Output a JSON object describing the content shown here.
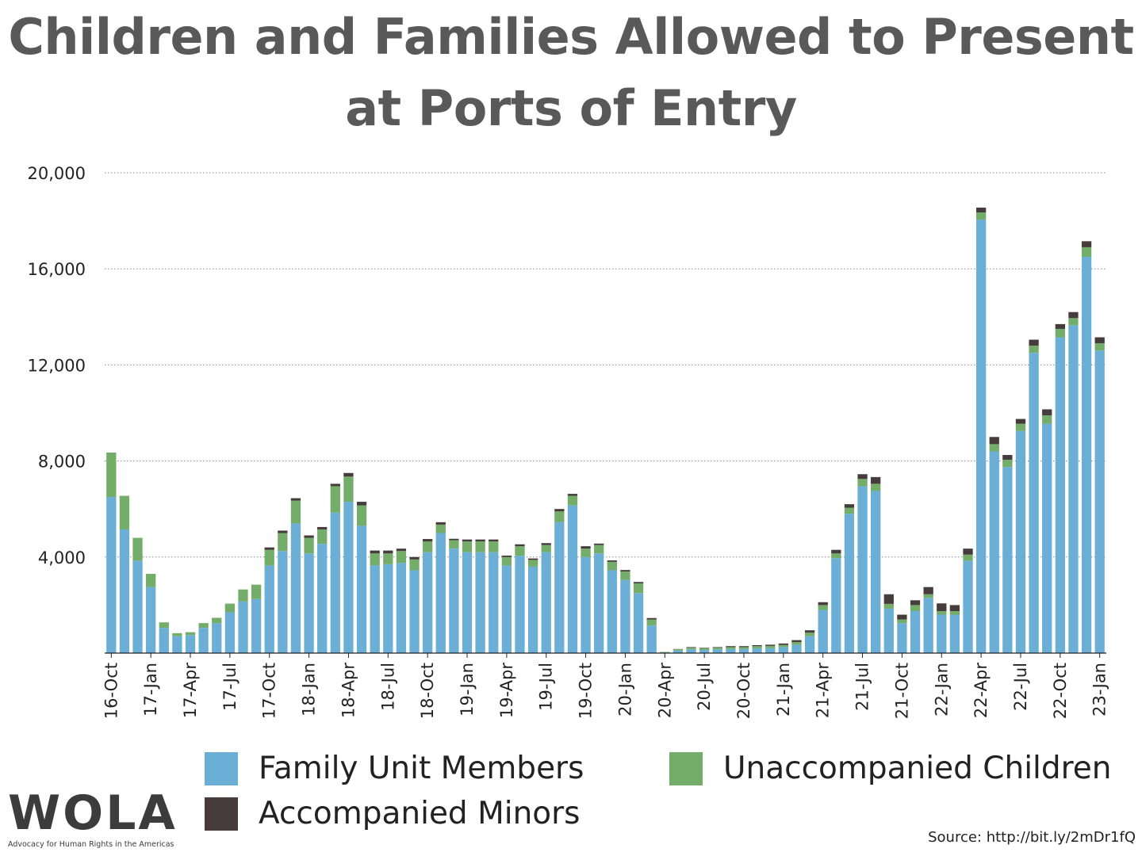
{
  "title": {
    "line1": "Children and Families Allowed to Present",
    "line2": "at Ports of Entry"
  },
  "colors": {
    "family": "#6baed6",
    "unaccompanied": "#74ad6a",
    "accompanied": "#463c3c",
    "grid": "#888888"
  },
  "legend": {
    "family": "Family Unit Members",
    "unaccompanied": "Unaccompanied Children",
    "accompanied": "Accompanied Minors"
  },
  "logo": {
    "name": "WOLA",
    "tagline": "Advocacy for Human Rights in the Americas"
  },
  "source": "Source: http://bit.ly/2mDr1fQ",
  "chart_data": {
    "type": "bar",
    "stacked": true,
    "ylim": [
      0,
      20000
    ],
    "yticks": [
      "4,000",
      "8,000",
      "12,000",
      "16,000",
      "20,000"
    ],
    "ytick_values": [
      4000,
      8000,
      12000,
      16000,
      20000
    ],
    "grid": true,
    "x_tick_labels": [
      {
        "label": "16-Oct",
        "index": 0
      },
      {
        "label": "17-Jan",
        "index": 3
      },
      {
        "label": "17-Apr",
        "index": 6
      },
      {
        "label": "17-Jul",
        "index": 9
      },
      {
        "label": "17-Oct",
        "index": 12
      },
      {
        "label": "18-Jan",
        "index": 15
      },
      {
        "label": "18-Apr",
        "index": 18
      },
      {
        "label": "18-Jul",
        "index": 21
      },
      {
        "label": "18-Oct",
        "index": 24
      },
      {
        "label": "19-Jan",
        "index": 27
      },
      {
        "label": "19-Apr",
        "index": 30
      },
      {
        "label": "19-Jul",
        "index": 33
      },
      {
        "label": "19-Oct",
        "index": 36
      },
      {
        "label": "20-Jan",
        "index": 39
      },
      {
        "label": "20-Apr",
        "index": 42
      },
      {
        "label": "20-Jul",
        "index": 45
      },
      {
        "label": "20-Oct",
        "index": 48
      },
      {
        "label": "21-Jan",
        "index": 51
      },
      {
        "label": "21-Apr",
        "index": 54
      },
      {
        "label": "21-Jul",
        "index": 57
      },
      {
        "label": "21-Oct",
        "index": 60
      },
      {
        "label": "22-Jan",
        "index": 63
      },
      {
        "label": "22-Apr",
        "index": 66
      },
      {
        "label": "22-Jul",
        "index": 69
      },
      {
        "label": "22-Oct",
        "index": 72
      },
      {
        "label": "23-Jan",
        "index": 75
      }
    ],
    "series": [
      {
        "name": "Family Unit Members",
        "key": "family",
        "values": [
          6500,
          5150,
          3850,
          2750,
          1050,
          700,
          750,
          1050,
          1250,
          1700,
          2150,
          2250,
          3650,
          4250,
          5400,
          4150,
          4550,
          5850,
          6300,
          5300,
          3650,
          3700,
          3750,
          3450,
          4200,
          5000,
          4350,
          4200,
          4200,
          4200,
          3650,
          4050,
          3600,
          4200,
          5450,
          6150,
          4000,
          4150,
          3450,
          3050,
          2500,
          1150,
          30,
          110,
          160,
          130,
          160,
          170,
          170,
          200,
          210,
          250,
          350,
          700,
          1800,
          3950,
          5800,
          6950,
          6750,
          1850,
          1250,
          1750,
          2300,
          1600,
          1600,
          3850,
          18050,
          8400,
          7750,
          9250,
          12500,
          9550,
          13150,
          13650,
          16500,
          12600
        ]
      },
      {
        "name": "Unaccompanied Children",
        "key": "unaccompanied",
        "values": [
          1850,
          1400,
          950,
          550,
          230,
          130,
          120,
          200,
          220,
          360,
          500,
          600,
          650,
          750,
          950,
          650,
          600,
          1100,
          1050,
          850,
          500,
          450,
          500,
          450,
          450,
          350,
          350,
          450,
          450,
          450,
          350,
          400,
          280,
          300,
          450,
          400,
          350,
          350,
          350,
          350,
          400,
          250,
          20,
          50,
          70,
          70,
          70,
          80,
          80,
          90,
          90,
          90,
          110,
          150,
          200,
          200,
          250,
          300,
          300,
          200,
          150,
          250,
          150,
          150,
          150,
          250,
          300,
          300,
          300,
          300,
          300,
          350,
          350,
          300,
          400,
          300
        ]
      },
      {
        "name": "Accompanied Minors",
        "key": "accompanied",
        "values": [
          0,
          0,
          0,
          0,
          0,
          0,
          0,
          0,
          0,
          0,
          0,
          0,
          100,
          100,
          100,
          100,
          100,
          100,
          150,
          150,
          120,
          120,
          100,
          100,
          100,
          100,
          60,
          80,
          80,
          80,
          60,
          80,
          60,
          80,
          100,
          80,
          100,
          60,
          60,
          60,
          60,
          60,
          0,
          10,
          20,
          20,
          20,
          40,
          40,
          40,
          50,
          60,
          80,
          100,
          120,
          150,
          150,
          200,
          280,
          400,
          200,
          200,
          300,
          320,
          250,
          250,
          200,
          300,
          200,
          200,
          250,
          250,
          200,
          250,
          250,
          250
        ]
      }
    ]
  }
}
